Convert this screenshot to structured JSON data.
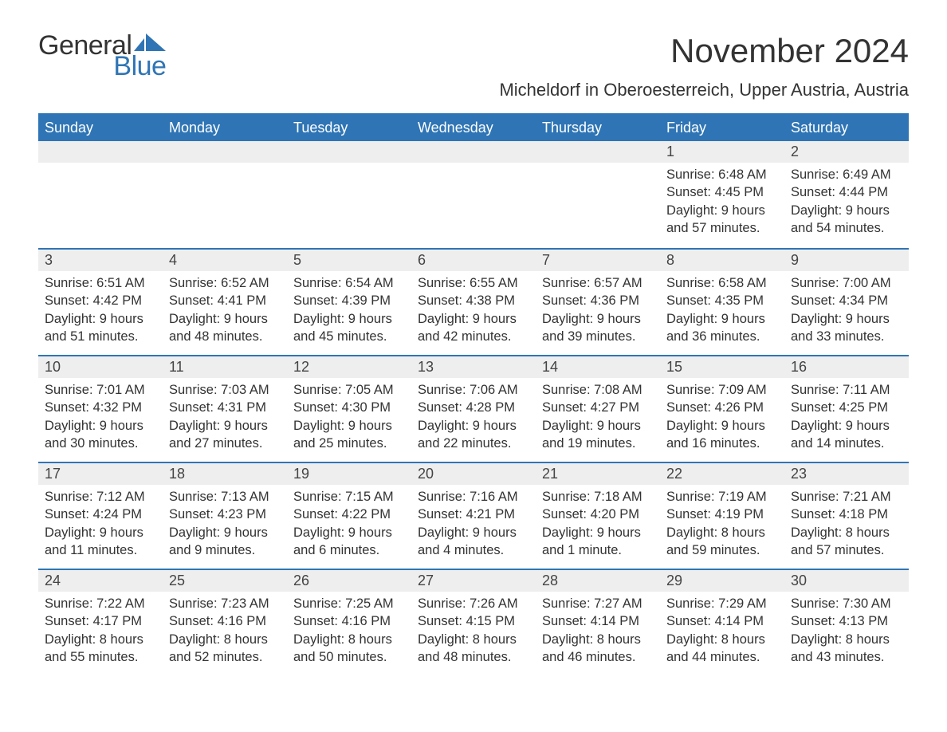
{
  "logo": {
    "text1": "General",
    "text2": "Blue"
  },
  "title": "November 2024",
  "subtitle": "Micheldorf in Oberoesterreich, Upper Austria, Austria",
  "labels": {
    "sunrise": "Sunrise:",
    "sunset": "Sunset:",
    "daylight": "Daylight:"
  },
  "colors": {
    "header_bg": "#2f75b5",
    "header_text": "#ffffff",
    "daynum_bg": "#eeeeee",
    "border": "#2f75b5",
    "text": "#333333",
    "page_bg": "#ffffff"
  },
  "fonts": {
    "title_size": 42,
    "subtitle_size": 22,
    "header_size": 18,
    "body_size": 16.5
  },
  "weekdays": [
    "Sunday",
    "Monday",
    "Tuesday",
    "Wednesday",
    "Thursday",
    "Friday",
    "Saturday"
  ],
  "weeks": [
    [
      null,
      null,
      null,
      null,
      null,
      {
        "day": "1",
        "sunrise": "6:48 AM",
        "sunset": "4:45 PM",
        "daylight": "9 hours and 57 minutes."
      },
      {
        "day": "2",
        "sunrise": "6:49 AM",
        "sunset": "4:44 PM",
        "daylight": "9 hours and 54 minutes."
      }
    ],
    [
      {
        "day": "3",
        "sunrise": "6:51 AM",
        "sunset": "4:42 PM",
        "daylight": "9 hours and 51 minutes."
      },
      {
        "day": "4",
        "sunrise": "6:52 AM",
        "sunset": "4:41 PM",
        "daylight": "9 hours and 48 minutes."
      },
      {
        "day": "5",
        "sunrise": "6:54 AM",
        "sunset": "4:39 PM",
        "daylight": "9 hours and 45 minutes."
      },
      {
        "day": "6",
        "sunrise": "6:55 AM",
        "sunset": "4:38 PM",
        "daylight": "9 hours and 42 minutes."
      },
      {
        "day": "7",
        "sunrise": "6:57 AM",
        "sunset": "4:36 PM",
        "daylight": "9 hours and 39 minutes."
      },
      {
        "day": "8",
        "sunrise": "6:58 AM",
        "sunset": "4:35 PM",
        "daylight": "9 hours and 36 minutes."
      },
      {
        "day": "9",
        "sunrise": "7:00 AM",
        "sunset": "4:34 PM",
        "daylight": "9 hours and 33 minutes."
      }
    ],
    [
      {
        "day": "10",
        "sunrise": "7:01 AM",
        "sunset": "4:32 PM",
        "daylight": "9 hours and 30 minutes."
      },
      {
        "day": "11",
        "sunrise": "7:03 AM",
        "sunset": "4:31 PM",
        "daylight": "9 hours and 27 minutes."
      },
      {
        "day": "12",
        "sunrise": "7:05 AM",
        "sunset": "4:30 PM",
        "daylight": "9 hours and 25 minutes."
      },
      {
        "day": "13",
        "sunrise": "7:06 AM",
        "sunset": "4:28 PM",
        "daylight": "9 hours and 22 minutes."
      },
      {
        "day": "14",
        "sunrise": "7:08 AM",
        "sunset": "4:27 PM",
        "daylight": "9 hours and 19 minutes."
      },
      {
        "day": "15",
        "sunrise": "7:09 AM",
        "sunset": "4:26 PM",
        "daylight": "9 hours and 16 minutes."
      },
      {
        "day": "16",
        "sunrise": "7:11 AM",
        "sunset": "4:25 PM",
        "daylight": "9 hours and 14 minutes."
      }
    ],
    [
      {
        "day": "17",
        "sunrise": "7:12 AM",
        "sunset": "4:24 PM",
        "daylight": "9 hours and 11 minutes."
      },
      {
        "day": "18",
        "sunrise": "7:13 AM",
        "sunset": "4:23 PM",
        "daylight": "9 hours and 9 minutes."
      },
      {
        "day": "19",
        "sunrise": "7:15 AM",
        "sunset": "4:22 PM",
        "daylight": "9 hours and 6 minutes."
      },
      {
        "day": "20",
        "sunrise": "7:16 AM",
        "sunset": "4:21 PM",
        "daylight": "9 hours and 4 minutes."
      },
      {
        "day": "21",
        "sunrise": "7:18 AM",
        "sunset": "4:20 PM",
        "daylight": "9 hours and 1 minute."
      },
      {
        "day": "22",
        "sunrise": "7:19 AM",
        "sunset": "4:19 PM",
        "daylight": "8 hours and 59 minutes."
      },
      {
        "day": "23",
        "sunrise": "7:21 AM",
        "sunset": "4:18 PM",
        "daylight": "8 hours and 57 minutes."
      }
    ],
    [
      {
        "day": "24",
        "sunrise": "7:22 AM",
        "sunset": "4:17 PM",
        "daylight": "8 hours and 55 minutes."
      },
      {
        "day": "25",
        "sunrise": "7:23 AM",
        "sunset": "4:16 PM",
        "daylight": "8 hours and 52 minutes."
      },
      {
        "day": "26",
        "sunrise": "7:25 AM",
        "sunset": "4:16 PM",
        "daylight": "8 hours and 50 minutes."
      },
      {
        "day": "27",
        "sunrise": "7:26 AM",
        "sunset": "4:15 PM",
        "daylight": "8 hours and 48 minutes."
      },
      {
        "day": "28",
        "sunrise": "7:27 AM",
        "sunset": "4:14 PM",
        "daylight": "8 hours and 46 minutes."
      },
      {
        "day": "29",
        "sunrise": "7:29 AM",
        "sunset": "4:14 PM",
        "daylight": "8 hours and 44 minutes."
      },
      {
        "day": "30",
        "sunrise": "7:30 AM",
        "sunset": "4:13 PM",
        "daylight": "8 hours and 43 minutes."
      }
    ]
  ]
}
